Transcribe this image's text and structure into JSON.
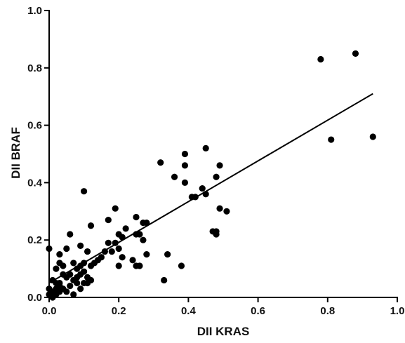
{
  "chart_data": {
    "type": "scatter",
    "xlabel": "DII KRAS",
    "ylabel": "DII BRAF",
    "xlim": [
      0.0,
      1.0
    ],
    "ylim": [
      0.0,
      1.0
    ],
    "x_ticks": [
      "0.0",
      "0.2",
      "0.4",
      "0.6",
      "0.8",
      "1.0"
    ],
    "y_ticks": [
      "0.0",
      "0.2",
      "0.4",
      "0.6",
      "0.8",
      "1.0"
    ],
    "grid": false,
    "legend": "none",
    "regression_line": {
      "x": [
        0.0,
        0.93
      ],
      "y": [
        0.05,
        0.71
      ]
    },
    "points": [
      [
        0.78,
        0.83
      ],
      [
        0.88,
        0.85
      ],
      [
        0.81,
        0.55
      ],
      [
        0.93,
        0.56
      ],
      [
        0.45,
        0.52
      ],
      [
        0.39,
        0.5
      ],
      [
        0.32,
        0.47
      ],
      [
        0.39,
        0.46
      ],
      [
        0.49,
        0.46
      ],
      [
        0.36,
        0.42
      ],
      [
        0.39,
        0.4
      ],
      [
        0.48,
        0.42
      ],
      [
        0.44,
        0.38
      ],
      [
        0.45,
        0.36
      ],
      [
        0.41,
        0.35
      ],
      [
        0.42,
        0.35
      ],
      [
        0.1,
        0.37
      ],
      [
        0.49,
        0.31
      ],
      [
        0.51,
        0.3
      ],
      [
        0.19,
        0.31
      ],
      [
        0.25,
        0.28
      ],
      [
        0.27,
        0.26
      ],
      [
        0.28,
        0.26
      ],
      [
        0.17,
        0.27
      ],
      [
        0.12,
        0.25
      ],
      [
        0.47,
        0.23
      ],
      [
        0.48,
        0.22
      ],
      [
        0.48,
        0.23
      ],
      [
        0.22,
        0.24
      ],
      [
        0.06,
        0.22
      ],
      [
        0.2,
        0.22
      ],
      [
        0.21,
        0.21
      ],
      [
        0.25,
        0.22
      ],
      [
        0.26,
        0.22
      ],
      [
        0.0,
        0.17
      ],
      [
        0.05,
        0.17
      ],
      [
        0.09,
        0.18
      ],
      [
        0.11,
        0.16
      ],
      [
        0.16,
        0.16
      ],
      [
        0.17,
        0.19
      ],
      [
        0.18,
        0.16
      ],
      [
        0.19,
        0.19
      ],
      [
        0.2,
        0.17
      ],
      [
        0.21,
        0.14
      ],
      [
        0.24,
        0.13
      ],
      [
        0.27,
        0.2
      ],
      [
        0.28,
        0.15
      ],
      [
        0.34,
        0.15
      ],
      [
        0.03,
        0.15
      ],
      [
        0.02,
        0.1
      ],
      [
        0.03,
        0.12
      ],
      [
        0.04,
        0.11
      ],
      [
        0.07,
        0.12
      ],
      [
        0.08,
        0.1
      ],
      [
        0.09,
        0.11
      ],
      [
        0.1,
        0.12
      ],
      [
        0.12,
        0.11
      ],
      [
        0.13,
        0.12
      ],
      [
        0.14,
        0.13
      ],
      [
        0.15,
        0.14
      ],
      [
        0.2,
        0.11
      ],
      [
        0.25,
        0.11
      ],
      [
        0.26,
        0.11
      ],
      [
        0.38,
        0.11
      ],
      [
        0.01,
        0.06
      ],
      [
        0.02,
        0.05
      ],
      [
        0.03,
        0.05
      ],
      [
        0.04,
        0.08
      ],
      [
        0.05,
        0.07
      ],
      [
        0.06,
        0.08
      ],
      [
        0.07,
        0.06
      ],
      [
        0.08,
        0.07
      ],
      [
        0.09,
        0.08
      ],
      [
        0.1,
        0.09
      ],
      [
        0.11,
        0.07
      ],
      [
        0.12,
        0.06
      ],
      [
        0.1,
        0.05
      ],
      [
        0.11,
        0.05
      ],
      [
        0.33,
        0.06
      ],
      [
        0.0,
        0.01
      ],
      [
        0.01,
        0.02
      ],
      [
        0.01,
        0.0
      ],
      [
        0.02,
        0.01
      ],
      [
        0.02,
        0.03
      ],
      [
        0.03,
        0.02
      ],
      [
        0.03,
        0.04
      ],
      [
        0.04,
        0.03
      ],
      [
        0.05,
        0.02
      ],
      [
        0.06,
        0.04
      ],
      [
        0.07,
        0.01
      ],
      [
        0.08,
        0.05
      ],
      [
        0.09,
        0.03
      ],
      [
        0.0,
        0.03
      ],
      [
        0.01,
        0.01
      ]
    ]
  }
}
